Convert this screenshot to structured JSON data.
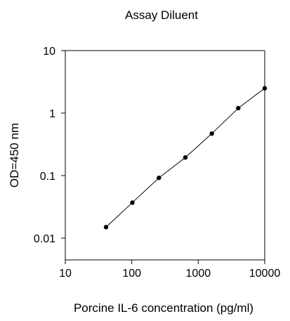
{
  "chart_data": {
    "type": "line",
    "title": "Assay Diluent",
    "xlabel": "Porcine IL-6 concentration (pg/ml)",
    "ylabel": "OD=450 nm",
    "xscale": "log",
    "yscale": "log",
    "xlim": [
      10,
      10000
    ],
    "ylim": [
      0.005,
      10
    ],
    "x_ticks": [
      10,
      100,
      1000,
      10000
    ],
    "x_tick_labels": [
      "10",
      "100",
      "1000",
      "10000"
    ],
    "y_ticks": [
      0.01,
      0.1,
      1,
      10
    ],
    "y_tick_labels": [
      "0.01",
      "0.1",
      "1",
      "10"
    ],
    "grid": false,
    "legend": "none",
    "series": [
      {
        "x": [
          41,
          102,
          256,
          640,
          1600,
          4000,
          10000
        ],
        "y": [
          0.015,
          0.037,
          0.092,
          0.195,
          0.47,
          1.2,
          2.5
        ]
      }
    ],
    "colors": {
      "line": "#000000",
      "marker": "#000000",
      "axis": "#000000"
    }
  }
}
